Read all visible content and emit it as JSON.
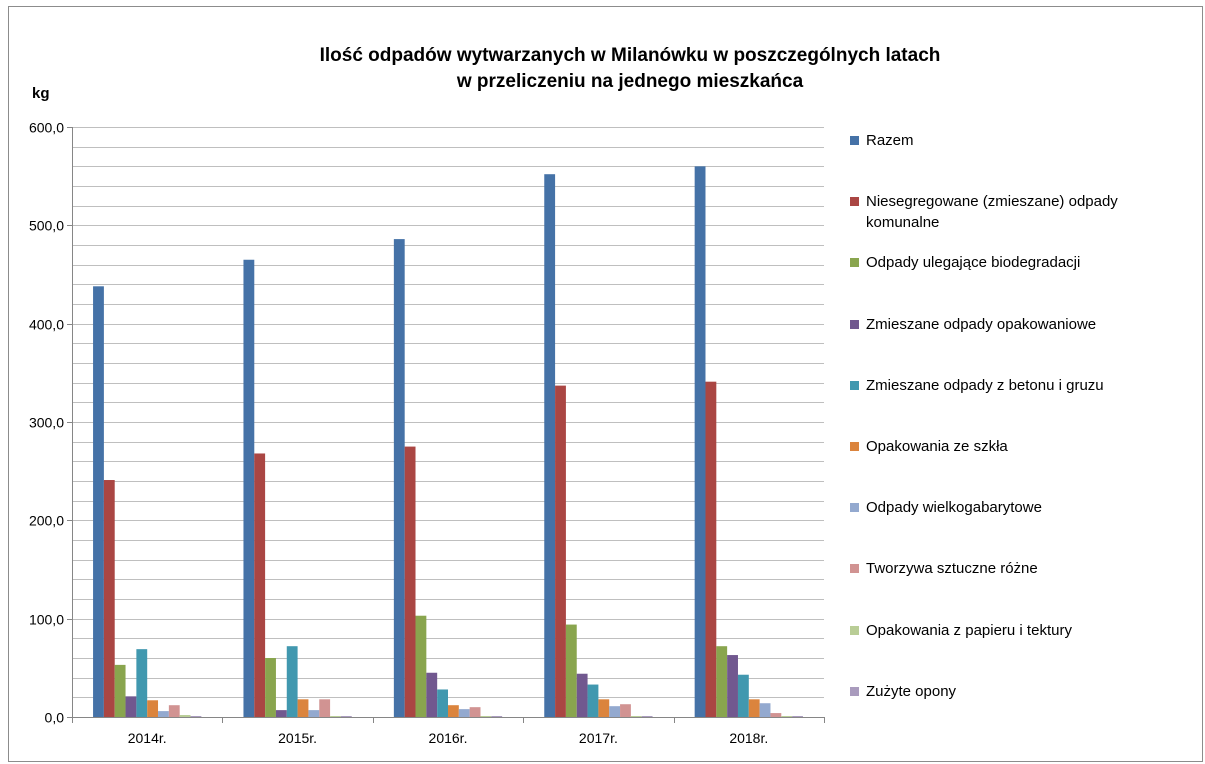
{
  "chart_data": {
    "type": "bar",
    "title": "Ilość odpadów wytwarzanych w Milanówku w poszczególnych latach w przeliczeniu na jednego mieszkańca",
    "title_lines": [
      "Ilość odpadów wytwarzanych w Milanówku w poszczególnych latach",
      "w przeliczeniu na jednego mieszkańca"
    ],
    "ylabel": "kg",
    "xlabel": "",
    "ylim": [
      0,
      600
    ],
    "y_ticks": [
      "0,0",
      "100,0",
      "200,0",
      "300,0",
      "400,0",
      "500,0",
      "600,0"
    ],
    "y_tick_values": [
      0,
      100,
      200,
      300,
      400,
      500,
      600
    ],
    "minor_grid_step": 20,
    "grid": true,
    "legend_position": "right",
    "categories": [
      "2014r.",
      "2015r.",
      "2016r.",
      "2017r.",
      "2018r."
    ],
    "series": [
      {
        "name": "Razem",
        "color": "#4572A7",
        "values": [
          438,
          465,
          486,
          552,
          560
        ]
      },
      {
        "name": "Niesegregowane (zmieszane) odpady komunalne",
        "color": "#AA4643",
        "values": [
          241,
          268,
          275,
          337,
          341
        ]
      },
      {
        "name": "Odpady ulegające biodegradacji",
        "color": "#89A54E",
        "values": [
          53,
          60,
          103,
          94,
          72
        ]
      },
      {
        "name": "Zmieszane odpady opakowaniowe",
        "color": "#71588F",
        "values": [
          21,
          7,
          45,
          44,
          63
        ]
      },
      {
        "name": "Zmieszane odpady z betonu i gruzu",
        "color": "#4198AF",
        "values": [
          69,
          72,
          28,
          33,
          43
        ]
      },
      {
        "name": "Opakowania ze szkła",
        "color": "#DB843D",
        "values": [
          17,
          18,
          12,
          18,
          18
        ]
      },
      {
        "name": "Odpady wielkogabarytowe",
        "color": "#93A9CF",
        "values": [
          6,
          7,
          8,
          11,
          14
        ]
      },
      {
        "name": "Tworzywa sztuczne różne",
        "color": "#D19392",
        "values": [
          12,
          18,
          10,
          13,
          4
        ]
      },
      {
        "name": "Opakowania z papieru i tektury",
        "color": "#B9CD96",
        "values": [
          2,
          1,
          1,
          1,
          1
        ]
      },
      {
        "name": "Zużyte opony",
        "color": "#A99BBD",
        "values": [
          1,
          1,
          1,
          1,
          1
        ]
      }
    ]
  }
}
